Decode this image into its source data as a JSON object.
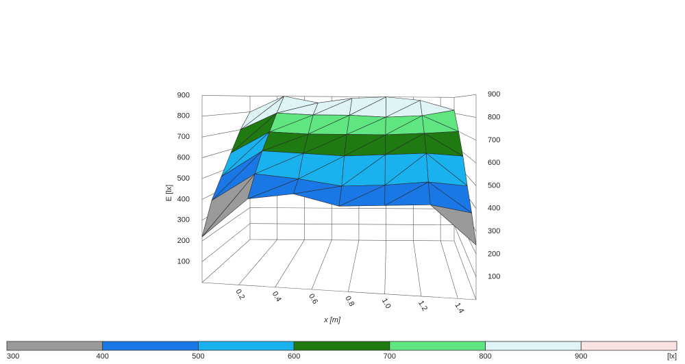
{
  "chart_data": {
    "type": "surface",
    "zlabel": "E [lx]",
    "xlabel": "x [m]",
    "zlim": [
      0,
      900
    ],
    "zticks": [
      100,
      200,
      300,
      400,
      500,
      600,
      700,
      800,
      900
    ],
    "xlim": [
      0,
      1.5
    ],
    "xticks": [
      0.2,
      0.4,
      0.6,
      0.8,
      {
        "value": 1,
        "label": "1.0"
      },
      1.2,
      1.4
    ],
    "surface": {
      "x": [
        0,
        0.25,
        0.5,
        0.75,
        1,
        1.25,
        1.5
      ],
      "z": [
        [
          220,
          410,
          440,
          390,
          400,
          410,
          240
        ],
        [
          370,
          510,
          490,
          460,
          470,
          490,
          350
        ],
        [
          470,
          610,
          600,
          590,
          600,
          610,
          450
        ],
        [
          580,
          700,
          690,
          690,
          690,
          700,
          580
        ],
        [
          700,
          800,
          790,
          790,
          780,
          790,
          700
        ],
        [
          800,
          900,
          860,
          890,
          900,
          880,
          820
        ]
      ]
    },
    "colorbar": {
      "levels": [
        300,
        400,
        500,
        600,
        700,
        800,
        900
      ],
      "colors": [
        "#9a9a9a",
        "#1a78e6",
        "#1ab2ee",
        "#1f7a12",
        "#5fe681",
        "#dff4f4",
        "#fbe3e3"
      ],
      "unit": "[lx]"
    }
  }
}
